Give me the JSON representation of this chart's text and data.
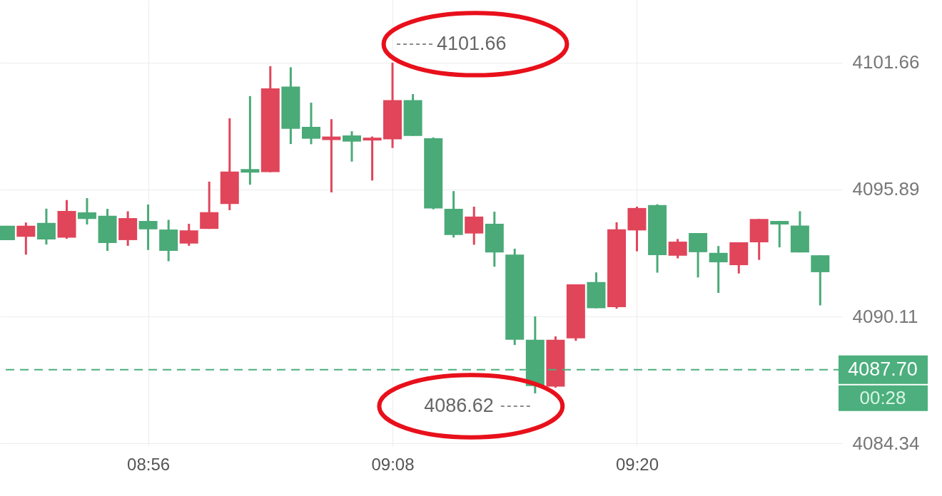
{
  "chart_data": {
    "type": "candlestick",
    "x": [
      8.8167,
      8.8333,
      8.85,
      8.8667,
      8.8833,
      8.9,
      8.9167,
      8.9333,
      8.95,
      8.9667,
      8.9833,
      9.0,
      9.0167,
      9.0333,
      9.05,
      9.0667,
      9.0833,
      9.1,
      9.1167,
      9.1333,
      9.15,
      9.1667,
      9.1833,
      9.2,
      9.2167,
      9.2333,
      9.25,
      9.2667,
      9.2833,
      9.3,
      9.3167,
      9.3333,
      9.35,
      9.3667,
      9.3833,
      9.4,
      9.4167,
      9.4333,
      9.45,
      9.4667,
      9.4833
    ],
    "ohlc": [
      [
        4094.24,
        4094.24,
        4093.59,
        4093.59
      ],
      [
        4093.74,
        4094.39,
        4092.93,
        4094.24
      ],
      [
        4094.37,
        4095.02,
        4093.39,
        4093.62
      ],
      [
        4093.7,
        4095.41,
        4093.65,
        4094.92
      ],
      [
        4094.85,
        4095.5,
        4094.3,
        4094.55
      ],
      [
        4094.7,
        4095.01,
        4093.1,
        4093.46
      ],
      [
        4093.59,
        4094.9,
        4093.33,
        4094.59
      ],
      [
        4094.46,
        4095.21,
        4093.14,
        4094.08
      ],
      [
        4094.07,
        4094.51,
        4092.63,
        4093.1
      ],
      [
        4093.43,
        4094.33,
        4093.33,
        4094.03
      ],
      [
        4094.1,
        4096.25,
        4094.1,
        4094.86
      ],
      [
        4095.23,
        4099.13,
        4094.95,
        4096.71
      ],
      [
        4096.82,
        4100.14,
        4096.11,
        4096.66
      ],
      [
        4096.68,
        4101.5,
        4096.68,
        4100.49
      ],
      [
        4100.57,
        4101.45,
        4097.96,
        4098.65
      ],
      [
        4098.74,
        4099.84,
        4097.95,
        4098.2
      ],
      [
        4098.14,
        4099.09,
        4095.76,
        4098.3
      ],
      [
        4098.35,
        4098.54,
        4097.16,
        4098.07
      ],
      [
        4098.12,
        4098.3,
        4096.3,
        4098.25
      ],
      [
        4098.17,
        4101.66,
        4097.78,
        4099.96
      ],
      [
        4099.96,
        4100.23,
        4098.33,
        4098.33
      ],
      [
        4098.22,
        4098.26,
        4094.99,
        4095.03
      ],
      [
        4095.01,
        4095.82,
        4093.71,
        4093.82
      ],
      [
        4093.89,
        4095.11,
        4093.38,
        4094.66
      ],
      [
        4094.33,
        4094.88,
        4092.38,
        4093.03
      ],
      [
        4092.93,
        4093.2,
        4088.82,
        4089.06
      ],
      [
        4089.06,
        4090.12,
        4086.62,
        4086.95
      ],
      [
        4086.93,
        4089.21,
        4086.88,
        4089.06
      ],
      [
        4089.12,
        4091.58,
        4089.01,
        4091.58
      ],
      [
        4091.68,
        4092.12,
        4090.49,
        4090.49
      ],
      [
        4090.54,
        4094.4,
        4090.47,
        4094.08
      ],
      [
        4094.03,
        4095.11,
        4093.08,
        4095.05
      ],
      [
        4095.18,
        4095.22,
        4092.11,
        4092.91
      ],
      [
        4092.88,
        4093.64,
        4092.76,
        4093.52
      ],
      [
        4093.91,
        4093.91,
        4091.89,
        4093.04
      ],
      [
        4093.01,
        4093.32,
        4091.19,
        4092.58
      ],
      [
        4092.45,
        4093.49,
        4092.07,
        4093.49
      ],
      [
        4093.49,
        4094.55,
        4092.69,
        4094.55
      ],
      [
        4094.46,
        4094.46,
        4093.26,
        4094.3
      ],
      [
        4094.25,
        4094.9,
        4093.03,
        4093.03
      ],
      [
        4092.9,
        4092.9,
        4090.62,
        4092.13
      ]
    ],
    "colors": [
      "#4aaa78",
      "#e0455a",
      "#4aaa78",
      "#e0455a",
      "#4aaa78",
      "#4aaa78",
      "#e0455a",
      "#4aaa78",
      "#4aaa78",
      "#e0455a",
      "#e0455a",
      "#e0455a",
      "#4aaa78",
      "#e0455a",
      "#4aaa78",
      "#4aaa78",
      "#e0455a",
      "#4aaa78",
      "#e0455a",
      "#e0455a",
      "#4aaa78",
      "#4aaa78",
      "#4aaa78",
      "#e0455a",
      "#4aaa78",
      "#4aaa78",
      "#4aaa78",
      "#e0455a",
      "#e0455a",
      "#4aaa78",
      "#e0455a",
      "#e0455a",
      "#4aaa78",
      "#e0455a",
      "#4aaa78",
      "#4aaa78",
      "#e0455a",
      "#e0455a",
      "#4aaa78",
      "#4aaa78",
      "#4aaa78"
    ],
    "xlim": [
      8.815,
      9.4983
    ],
    "xticks": [
      {
        "value": 8.9333,
        "label": "08:56"
      },
      {
        "value": 9.1333,
        "label": "09:08"
      },
      {
        "value": 9.3333,
        "label": "09:20"
      }
    ],
    "ylim": [
      4084.22,
      4104.51
    ],
    "yticks": [
      4084.34,
      4090.11,
      4095.89,
      4101.66
    ],
    "grid": true,
    "ref_lines": [
      {
        "axis": "y",
        "value": 4087.7,
        "label": "4087.70",
        "color": "#4caf7d",
        "line_style": "dashed"
      }
    ],
    "annotations": [
      {
        "text": "4101.66",
        "x": 9.1333,
        "y": 4101.66
      },
      {
        "text": "4086.62",
        "x": 9.25,
        "y": 4086.62
      },
      "00:28"
    ]
  }
}
